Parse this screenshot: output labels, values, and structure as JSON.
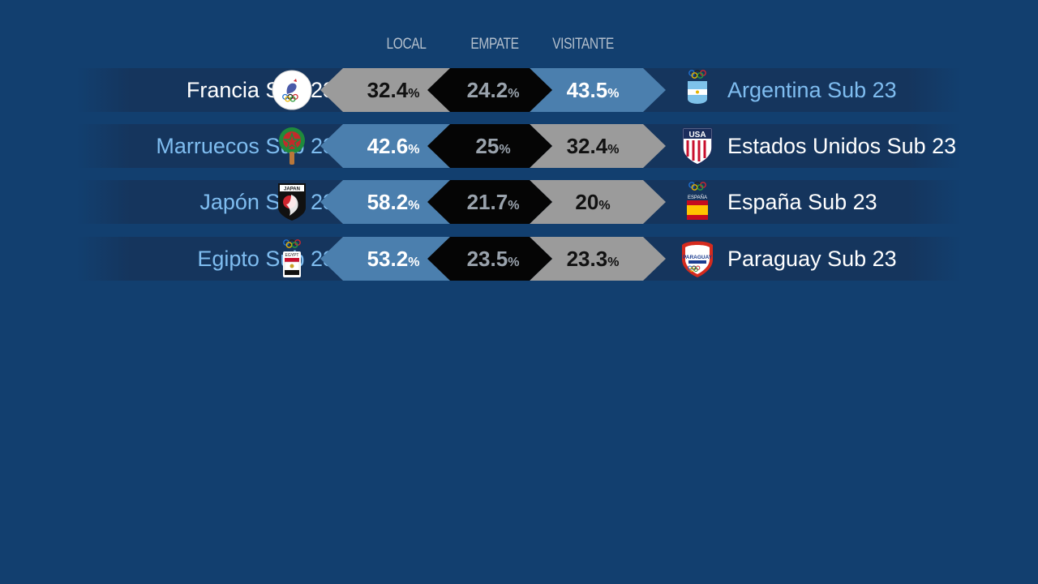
{
  "headers": {
    "local": "LOCAL",
    "draw": "EMPATE",
    "away": "VISITANTE"
  },
  "percent_sign": "%",
  "matches": [
    {
      "home": {
        "name": "Francia Sub 23",
        "highlight": false,
        "crest": "france-olympic-rooster-crest"
      },
      "away": {
        "name": "Argentina Sub 23",
        "highlight": true,
        "crest": "argentina-olympic-crest"
      },
      "local_pct": "32.4",
      "draw_pct": "24.2",
      "away_pct": "43.5",
      "favorite": "away"
    },
    {
      "home": {
        "name": "Marruecos Sub 23",
        "highlight": true,
        "crest": "morocco-crest"
      },
      "away": {
        "name": "Estados Unidos Sub 23",
        "highlight": false,
        "crest": "usa-crest"
      },
      "local_pct": "42.6",
      "draw_pct": "25",
      "away_pct": "32.4",
      "favorite": "home"
    },
    {
      "home": {
        "name": "Japón Sub 23",
        "highlight": true,
        "crest": "japan-crest"
      },
      "away": {
        "name": "España Sub 23",
        "highlight": false,
        "crest": "spain-olympic-crest"
      },
      "local_pct": "58.2",
      "draw_pct": "21.7",
      "away_pct": "20",
      "favorite": "home"
    },
    {
      "home": {
        "name": "Egipto Sub 23",
        "highlight": true,
        "crest": "egypt-olympic-crest"
      },
      "away": {
        "name": "Paraguay Sub 23",
        "highlight": false,
        "crest": "paraguay-crest"
      },
      "local_pct": "53.2",
      "draw_pct": "23.5",
      "away_pct": "23.3",
      "favorite": "home"
    }
  ],
  "crest_texts": {
    "japan": "JAPAN",
    "usa": "USA",
    "spain": "ESPAÑA",
    "egypt": "EGYPT",
    "paraguay": "PARAGUAY"
  },
  "colors": {
    "background": "#123f6f",
    "row": "#15355d",
    "favorite_blue": "#4b7fae",
    "underdog_grey": "#9b9b9b",
    "draw_black": "#050505",
    "highlight_text": "#7fbdf0"
  }
}
